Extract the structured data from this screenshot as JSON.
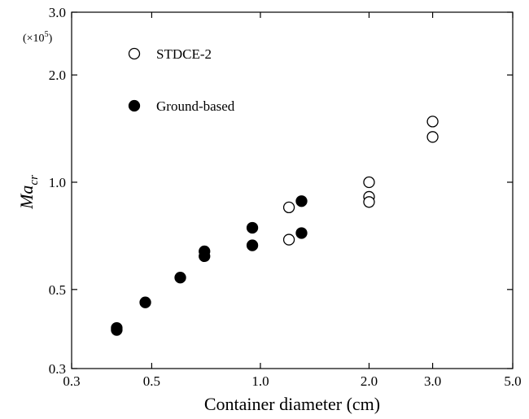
{
  "chart_data": {
    "type": "scatter",
    "xlabel": "Container diameter (cm)",
    "ylabel": {
      "main": "Ma",
      "sub": "cr"
    },
    "y_multiplier": {
      "prefix": "(×10",
      "exp": "5",
      "suffix": ")"
    },
    "xscale": "log",
    "yscale": "log",
    "xlim": [
      0.3,
      5.0
    ],
    "ylim": [
      0.3,
      3.0
    ],
    "xticks": [
      {
        "value": 0.3,
        "label": "0.3"
      },
      {
        "value": 0.5,
        "label": "0.5"
      },
      {
        "value": 1.0,
        "label": "1.0"
      },
      {
        "value": 2.0,
        "label": "2.0"
      },
      {
        "value": 3.0,
        "label": "3.0"
      },
      {
        "value": 5.0,
        "label": "5.0"
      }
    ],
    "yticks": [
      {
        "value": 0.3,
        "label": "0.3"
      },
      {
        "value": 0.5,
        "label": "0.5"
      },
      {
        "value": 1.0,
        "label": "1.0"
      },
      {
        "value": 2.0,
        "label": "2.0"
      },
      {
        "value": 3.0,
        "label": "3.0"
      }
    ],
    "grid": false,
    "legend_position": "top-left",
    "series": [
      {
        "name": "STDCE-2",
        "marker": "open-circle",
        "points": [
          {
            "x": 1.2,
            "y": 0.85
          },
          {
            "x": 1.2,
            "y": 0.69
          },
          {
            "x": 2.0,
            "y": 1.0
          },
          {
            "x": 2.0,
            "y": 0.91
          },
          {
            "x": 2.0,
            "y": 0.88
          },
          {
            "x": 3.0,
            "y": 1.48
          },
          {
            "x": 3.0,
            "y": 1.34
          }
        ]
      },
      {
        "name": "Ground-based",
        "marker": "filled-circle",
        "points": [
          {
            "x": 0.4,
            "y": 0.39
          },
          {
            "x": 0.4,
            "y": 0.385
          },
          {
            "x": 0.48,
            "y": 0.46
          },
          {
            "x": 0.6,
            "y": 0.54
          },
          {
            "x": 0.7,
            "y": 0.64
          },
          {
            "x": 0.7,
            "y": 0.62
          },
          {
            "x": 0.95,
            "y": 0.745
          },
          {
            "x": 0.95,
            "y": 0.665
          },
          {
            "x": 1.3,
            "y": 0.885
          },
          {
            "x": 1.3,
            "y": 0.72
          }
        ]
      }
    ]
  }
}
